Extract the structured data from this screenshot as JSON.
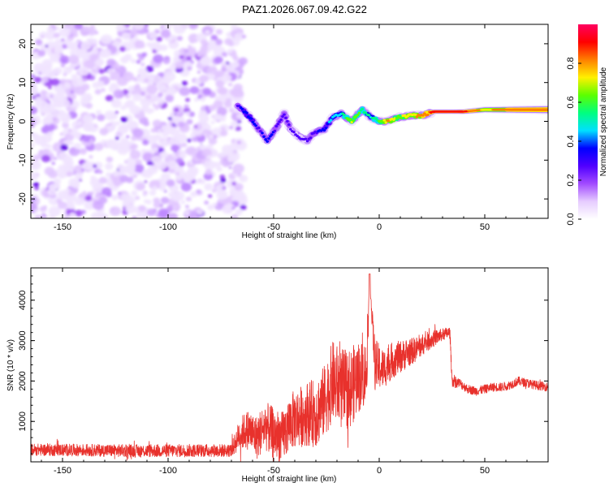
{
  "title": "PAZ1.2026.067.09.42.G22",
  "chart_data": [
    {
      "type": "heatmap",
      "xlabel": "Height of straight line (km)",
      "ylabel": "Frequency (Hz)",
      "xlim": [
        -165,
        80
      ],
      "ylim": [
        -25,
        25
      ],
      "xticks": [
        -150,
        -100,
        -50,
        0,
        50
      ],
      "yticks": [
        -20,
        -10,
        0,
        10,
        20
      ],
      "colorbar": {
        "label": "Normalized spectral amplitude",
        "range": [
          0,
          1
        ],
        "ticks": [
          0.0,
          0.2,
          0.4,
          0.6,
          0.8
        ],
        "colors": [
          "#ffffff",
          "#e6ccff",
          "#a24bff",
          "#5000ff",
          "#0000ff",
          "#00e0ff",
          "#00ff7f",
          "#5cff00",
          "#fff000",
          "#ff7f00",
          "#ff0000",
          "#ff0060"
        ]
      },
      "noise_region": {
        "x_range": [
          -165,
          -67
        ],
        "freq_range": [
          -25,
          25
        ]
      },
      "signal_track": [
        {
          "x": -67,
          "freq": 4,
          "amp": 0.3
        },
        {
          "x": -62,
          "freq": 1.5,
          "amp": 0.4
        },
        {
          "x": -57,
          "freq": -2,
          "amp": 0.3
        },
        {
          "x": -53,
          "freq": -5,
          "amp": 0.35
        },
        {
          "x": -48,
          "freq": -1,
          "amp": 0.3
        },
        {
          "x": -45,
          "freq": 2,
          "amp": 0.3
        },
        {
          "x": -42,
          "freq": -2,
          "amp": 0.25
        },
        {
          "x": -38,
          "freq": -4,
          "amp": 0.25
        },
        {
          "x": -34,
          "freq": -5,
          "amp": 0.25
        },
        {
          "x": -31,
          "freq": -3,
          "amp": 0.3
        },
        {
          "x": -26,
          "freq": -2,
          "amp": 0.35
        },
        {
          "x": -22,
          "freq": 1,
          "amp": 0.45
        },
        {
          "x": -18,
          "freq": 2,
          "amp": 0.5
        },
        {
          "x": -13,
          "freq": 0,
          "amp": 0.7
        },
        {
          "x": -8,
          "freq": 3,
          "amp": 0.55
        },
        {
          "x": -4,
          "freq": 1,
          "amp": 0.5
        },
        {
          "x": 0,
          "freq": 0,
          "amp": 0.6
        },
        {
          "x": 4,
          "freq": 0,
          "amp": 0.8
        },
        {
          "x": 9,
          "freq": 1,
          "amp": 0.65
        },
        {
          "x": 15,
          "freq": 1.5,
          "amp": 0.75
        },
        {
          "x": 20,
          "freq": 1.5,
          "amp": 0.8
        },
        {
          "x": 26,
          "freq": 2.5,
          "amp": 0.9
        },
        {
          "x": 32,
          "freq": 2.5,
          "amp": 0.92
        },
        {
          "x": 40,
          "freq": 2.5,
          "amp": 0.9
        },
        {
          "x": 50,
          "freq": 3,
          "amp": 0.75
        },
        {
          "x": 60,
          "freq": 3,
          "amp": 0.8
        },
        {
          "x": 70,
          "freq": 3,
          "amp": 0.85
        },
        {
          "x": 80,
          "freq": 3,
          "amp": 0.85
        }
      ]
    },
    {
      "type": "line",
      "xlabel": "Height of straight line (km)",
      "ylabel": "SNR (10 * v/v)",
      "xlim": [
        -165,
        80
      ],
      "ylim": [
        0,
        4800
      ],
      "xticks": [
        -150,
        -100,
        -50,
        0,
        50
      ],
      "yticks": [
        1000,
        2000,
        3000,
        4000
      ],
      "color": "#e8312c",
      "series": [
        {
          "name": "SNR",
          "x": [
            -165,
            -140,
            -115,
            -90,
            -70,
            -66,
            -62,
            -58,
            -54,
            -50,
            -46,
            -42,
            -38,
            -34,
            -30,
            -26,
            -22,
            -18,
            -14,
            -10,
            -6,
            -4.5,
            -2,
            2,
            6,
            10,
            14,
            18,
            22,
            26,
            30,
            33.5,
            34.5,
            38,
            42,
            46,
            50,
            54,
            58,
            62,
            66,
            70,
            74,
            80
          ],
          "y": [
            300,
            290,
            270,
            280,
            280,
            700,
            800,
            600,
            900,
            700,
            600,
            1000,
            1100,
            1200,
            1200,
            1500,
            2000,
            1800,
            1800,
            2100,
            2200,
            4500,
            2400,
            2300,
            2500,
            2600,
            2700,
            2800,
            2950,
            3050,
            3150,
            3200,
            2000,
            1950,
            1800,
            1750,
            1800,
            1850,
            1850,
            1900,
            2000,
            1950,
            1900,
            1850
          ],
          "noise": [
            150,
            150,
            160,
            160,
            160,
            400,
            500,
            550,
            600,
            650,
            650,
            700,
            750,
            800,
            850,
            900,
            1000,
            1000,
            1000,
            900,
            800,
            0,
            650,
            500,
            450,
            400,
            350,
            300,
            250,
            200,
            150,
            150,
            140,
            120,
            110,
            110,
            110,
            110,
            110,
            110,
            110,
            110,
            110,
            110
          ]
        }
      ]
    }
  ]
}
